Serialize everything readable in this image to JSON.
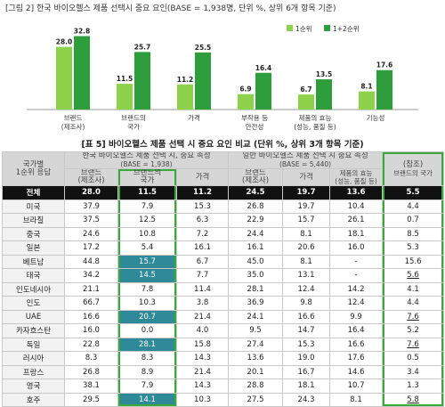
{
  "figure_title": "[그림 2] 한국 바이오헬스 제품 선택시 중요 요인(BASE = 1,938명, 단위 %, 상위 6개 항목 기준)",
  "chart_data": {
    "type": "bar",
    "categories": [
      [
        "브랜드",
        "(제조사)"
      ],
      [
        "브랜드의",
        "국가"
      ],
      [
        "가격"
      ],
      [
        "부작용 등",
        "안전성"
      ],
      [
        "제품의 효능",
        "(성능, 품질 등)"
      ],
      [
        "기능성"
      ]
    ],
    "series": [
      {
        "name": "1순위",
        "values": [
          28.0,
          11.5,
          11.2,
          6.9,
          6.7,
          8.1
        ],
        "color": "#8ed14a"
      },
      {
        "name": "1+2순위",
        "values": [
          32.8,
          25.7,
          25.5,
          16.4,
          13.5,
          17.6
        ],
        "color": "#2e9e3c"
      }
    ],
    "legend_position": "top-right",
    "ylim": [
      0,
      35
    ]
  },
  "table_title": "[표 5] 바이오헬스 제품 선택 시 중요 요인 비교 (단위 %, 상위 3개 항목 기준)",
  "table": {
    "rowhead1": "국가별",
    "rowhead2": "1순위 응답",
    "group_korea": "한국 바이오헬스 제품 선택 시, 중요 속성",
    "group_korea_base": "(BASE = 1,938)",
    "group_general": "일반 바이오헬스 제품 선택 시 중요 속성",
    "group_general_base": "(BASE = 5,440)",
    "ref_label1": "(참조)",
    "ref_label2": "브랜드의 국가",
    "col_brand1": "브랜드",
    "col_brand2": "(제조사)",
    "col_country1": "브랜드의",
    "col_country2": "국가",
    "col_price": "가격",
    "col_brand_g1": "브랜드",
    "col_brand_g2": "(제조사)",
    "col_price_g": "가격",
    "col_eff1": "제품의 효능",
    "col_eff2": "(성능, 품질 등)",
    "rows": [
      {
        "name": "전체",
        "v": [
          "28.0",
          "11.5",
          "11.2",
          "24.5",
          "19.7",
          "13.6",
          "5.5"
        ]
      },
      {
        "name": "미국",
        "v": [
          "37.9",
          "7.9",
          "15.3",
          "26.8",
          "19.7",
          "10.4",
          "4.4"
        ]
      },
      {
        "name": "브라질",
        "v": [
          "37.5",
          "12.5",
          "6.3",
          "22.9",
          "15.7",
          "26.1",
          "0.7"
        ]
      },
      {
        "name": "중국",
        "v": [
          "24.6",
          "10.8",
          "7.2",
          "24.4",
          "8.1",
          "18.1",
          "8.5"
        ]
      },
      {
        "name": "일본",
        "v": [
          "17.2",
          "5.4",
          "16.1",
          "16.1",
          "20.6",
          "16.0",
          "5.3"
        ]
      },
      {
        "name": "베트남",
        "v": [
          "44.8",
          "15.7",
          "6.7",
          "45.0",
          "8.1",
          "-",
          "15.6"
        ]
      },
      {
        "name": "태국",
        "v": [
          "34.2",
          "14.5",
          "7.7",
          "35.0",
          "13.1",
          "-",
          "5.6"
        ]
      },
      {
        "name": "인도네시아",
        "v": [
          "21.1",
          "7.8",
          "11.4",
          "28.1",
          "12.4",
          "14.2",
          "4.1"
        ]
      },
      {
        "name": "인도",
        "v": [
          "66.7",
          "10.3",
          "3.8",
          "36.9",
          "9.8",
          "12.4",
          "4.4"
        ]
      },
      {
        "name": "UAE",
        "v": [
          "16.6",
          "20.7",
          "21.4",
          "24.1",
          "16.6",
          "9.9",
          "7.6"
        ]
      },
      {
        "name": "카자흐스탄",
        "v": [
          "16.0",
          "0.0",
          "4.0",
          "9.5",
          "14.7",
          "16.4",
          "5.2"
        ]
      },
      {
        "name": "독일",
        "v": [
          "22.8",
          "28.1",
          "15.8",
          "27.4",
          "15.3",
          "16.6",
          "7.6"
        ]
      },
      {
        "name": "러시아",
        "v": [
          "8.3",
          "8.3",
          "14.3",
          "13.6",
          "19.0",
          "17.6",
          "0.5"
        ]
      },
      {
        "name": "프랑스",
        "v": [
          "26.8",
          "8.9",
          "21.4",
          "20.1",
          "16.7",
          "14.6",
          "3.4"
        ]
      },
      {
        "name": "영국",
        "v": [
          "38.1",
          "7.9",
          "14.3",
          "28.8",
          "18.1",
          "10.7",
          "1.3"
        ]
      },
      {
        "name": "호주",
        "v": [
          "29.5",
          "14.1",
          "10.3",
          "27.5",
          "24.3",
          "8.1",
          "5.8"
        ]
      }
    ],
    "highlight_country_col_rows": [
      5,
      6,
      9,
      11,
      15
    ],
    "underline_ref_rows": [
      6,
      9,
      11,
      15
    ]
  }
}
